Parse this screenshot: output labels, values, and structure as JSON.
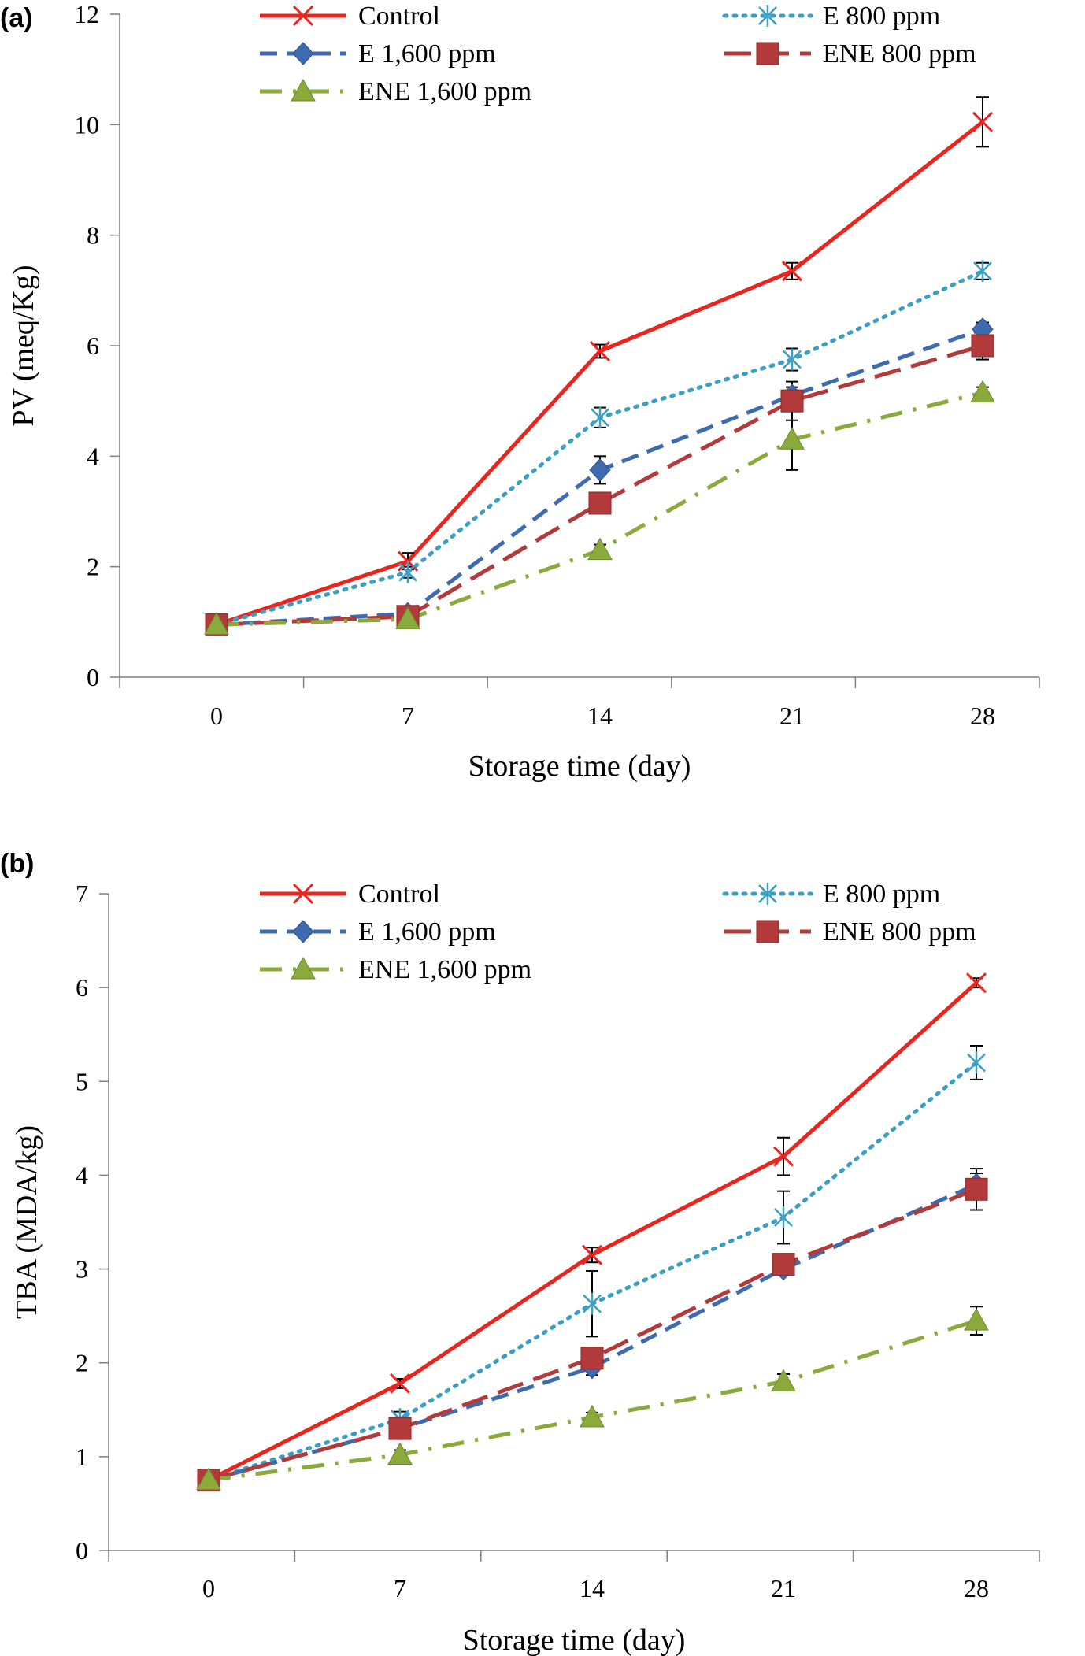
{
  "chart_data": [
    {
      "panel_label": "(a)",
      "type": "line",
      "xlabel": "Storage time (day)",
      "ylabel": "PV (meq/Kg)",
      "x": [
        "0",
        "7",
        "14",
        "21",
        "28"
      ],
      "ylim": [
        0,
        12
      ],
      "yticks": [
        0,
        2,
        4,
        6,
        8,
        10,
        12
      ],
      "grid": false,
      "legend_position": "top",
      "series": [
        {
          "name": "Control",
          "color": "#e8251f",
          "dash": "solid",
          "marker": "x-icon",
          "values": [
            0.95,
            2.1,
            5.9,
            7.35,
            10.05
          ],
          "err": [
            0.05,
            0.15,
            0.12,
            0.15,
            0.45
          ]
        },
        {
          "name": "E 800 ppm",
          "color": "#3a9fc1",
          "dash": "dotted",
          "marker": "asterisk-icon",
          "values": [
            0.95,
            1.9,
            4.7,
            5.75,
            7.35
          ],
          "err": [
            0.05,
            0.1,
            0.18,
            0.2,
            0.15
          ]
        },
        {
          "name": "E 1,600 ppm",
          "color": "#3e6bb0",
          "dash": "dashed",
          "marker": "diamond-icon",
          "values": [
            0.95,
            1.15,
            3.75,
            5.1,
            6.3
          ],
          "err": [
            0.05,
            0.08,
            0.25,
            0.15,
            0.12
          ]
        },
        {
          "name": "ENE 800 ppm",
          "color": "#b23a3a",
          "dash": "longdash",
          "marker": "square-icon",
          "values": [
            0.95,
            1.1,
            3.15,
            5.0,
            6.0
          ],
          "err": [
            0.05,
            0.08,
            0.15,
            0.35,
            0.25
          ]
        },
        {
          "name": "ENE 1,600 ppm",
          "color": "#8aab3c",
          "dash": "dashdot",
          "marker": "triangle-icon",
          "values": [
            0.95,
            1.05,
            2.3,
            4.3,
            5.15
          ],
          "err": [
            0.05,
            0.05,
            0.1,
            0.55,
            0.1
          ]
        }
      ]
    },
    {
      "panel_label": "(b)",
      "type": "line",
      "xlabel": "Storage time (day)",
      "ylabel": "TBA (MDA/kg)",
      "x": [
        "0",
        "7",
        "14",
        "21",
        "28"
      ],
      "ylim": [
        0,
        7
      ],
      "yticks": [
        0,
        1,
        2,
        3,
        4,
        5,
        6,
        7
      ],
      "grid": false,
      "legend_position": "top",
      "series": [
        {
          "name": "Control",
          "color": "#e8251f",
          "dash": "solid",
          "marker": "x-icon",
          "values": [
            0.75,
            1.78,
            3.15,
            4.2,
            6.05
          ],
          "err": [
            0.05,
            0.05,
            0.08,
            0.2,
            0.05
          ]
        },
        {
          "name": "E 800 ppm",
          "color": "#3a9fc1",
          "dash": "dotted",
          "marker": "asterisk-icon",
          "values": [
            0.75,
            1.4,
            2.63,
            3.55,
            5.2
          ],
          "err": [
            0.05,
            0.08,
            0.35,
            0.28,
            0.18
          ]
        },
        {
          "name": "E 1,600 ppm",
          "color": "#3e6bb0",
          "dash": "dashed",
          "marker": "diamond-icon",
          "values": [
            0.75,
            1.3,
            1.95,
            3.0,
            3.9
          ],
          "err": [
            0.05,
            0.05,
            0.08,
            0.05,
            0.12
          ]
        },
        {
          "name": "ENE 800 ppm",
          "color": "#b23a3a",
          "dash": "longdash",
          "marker": "square-icon",
          "values": [
            0.75,
            1.3,
            2.05,
            3.05,
            3.85
          ],
          "err": [
            0.05,
            0.05,
            0.08,
            0.08,
            0.22
          ]
        },
        {
          "name": "ENE 1,600 ppm",
          "color": "#8aab3c",
          "dash": "dashdot",
          "marker": "triangle-icon",
          "values": [
            0.75,
            1.02,
            1.42,
            1.8,
            2.45
          ],
          "err": [
            0.05,
            0.05,
            0.05,
            0.08,
            0.15
          ]
        }
      ]
    }
  ]
}
